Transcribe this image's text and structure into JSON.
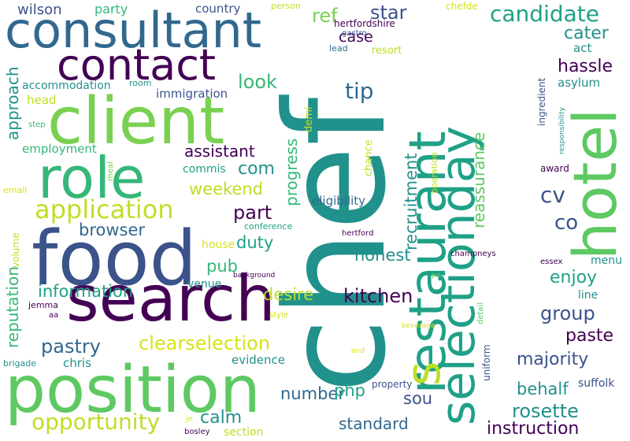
{
  "palette": {
    "dark_purple": "#440154",
    "indigo": "#3b528b",
    "blue": "#31688e",
    "teal": "#21918c",
    "sea_green": "#1fa187",
    "green": "#35b779",
    "light_green": "#5ec962",
    "lime": "#7ad151",
    "yellow_green": "#bddf26",
    "yellow": "#d8e219"
  },
  "words": {
    "chef": "chef",
    "position": "position",
    "search": "search",
    "food": "food",
    "client": "client",
    "consultant": "consultant",
    "contact": "contact",
    "role": "role",
    "restaurant": "restaurant",
    "selectionday": "selectionday",
    "hotel": "hotel",
    "application": "application",
    "candidate": "candidate",
    "s": "s",
    "opportunity": "opportunity",
    "clearselection": "clearselection",
    "part": "part",
    "kitchen": "kitchen",
    "pastry": "pastry",
    "information": "information",
    "browser": "browser",
    "reputation": "reputation",
    "recruitment": "recruitment",
    "progress": "progress",
    "approach": "approach",
    "reassurance": "reassurance",
    "rosette": "rosette",
    "instruction": "instruction",
    "majority": "majority",
    "group": "group",
    "weekend": "weekend",
    "duty": "duty",
    "desire": "desire",
    "honest": "honest",
    "look": "look",
    "tip": "tip",
    "ref": "ref",
    "star": "star",
    "case": "case",
    "com": "com",
    "assistant": "assistant",
    "cater": "cater",
    "hassle": "hassle",
    "cv": "cv",
    "co": "co",
    "enjoy": "enjoy",
    "paste": "paste",
    "behalf": "behalf",
    "number": "number",
    "calm": "calm",
    "standard": "standard",
    "sou": "sou",
    "php": "php",
    "pub": "pub",
    "evidence": "evidence",
    "chris": "chris",
    "wilson": "wilson",
    "party": "party",
    "country": "country",
    "person": "person",
    "chefde": "chefde",
    "hertfordshire": "hertfordshire",
    "gastro": "gastro",
    "lead": "lead",
    "resort": "resort",
    "act": "act",
    "asylum": "asylum",
    "ingredient": "ingredient",
    "responsibility": "responsibility",
    "award": "award",
    "accommodation": "accommodation",
    "room": "room",
    "immigration": "immigration",
    "head": "head",
    "step": "step",
    "employment": "employment",
    "meal": "meal",
    "commis": "commis",
    "email": "email",
    "eligibility": "eligibility",
    "demi": "demi",
    "chance": "chance",
    "operation": "operation",
    "conference": "conference",
    "house": "house",
    "volume": "volume",
    "hertford": "hertford",
    "champneys": "champneys",
    "essex": "essex",
    "menu": "menu",
    "background": "background",
    "venue": "venue",
    "jemma": "jemma",
    "aa": "aa",
    "style": "style",
    "line": "line",
    "detail": "detail",
    "beverage": "beverage",
    "pa": "pa",
    "end": "end",
    "brigade": "brigade",
    "uniform": "uniform",
    "property": "property",
    "suffolk": "suffolk",
    "je": "je",
    "bosley": "bosley",
    "section": "section"
  }
}
